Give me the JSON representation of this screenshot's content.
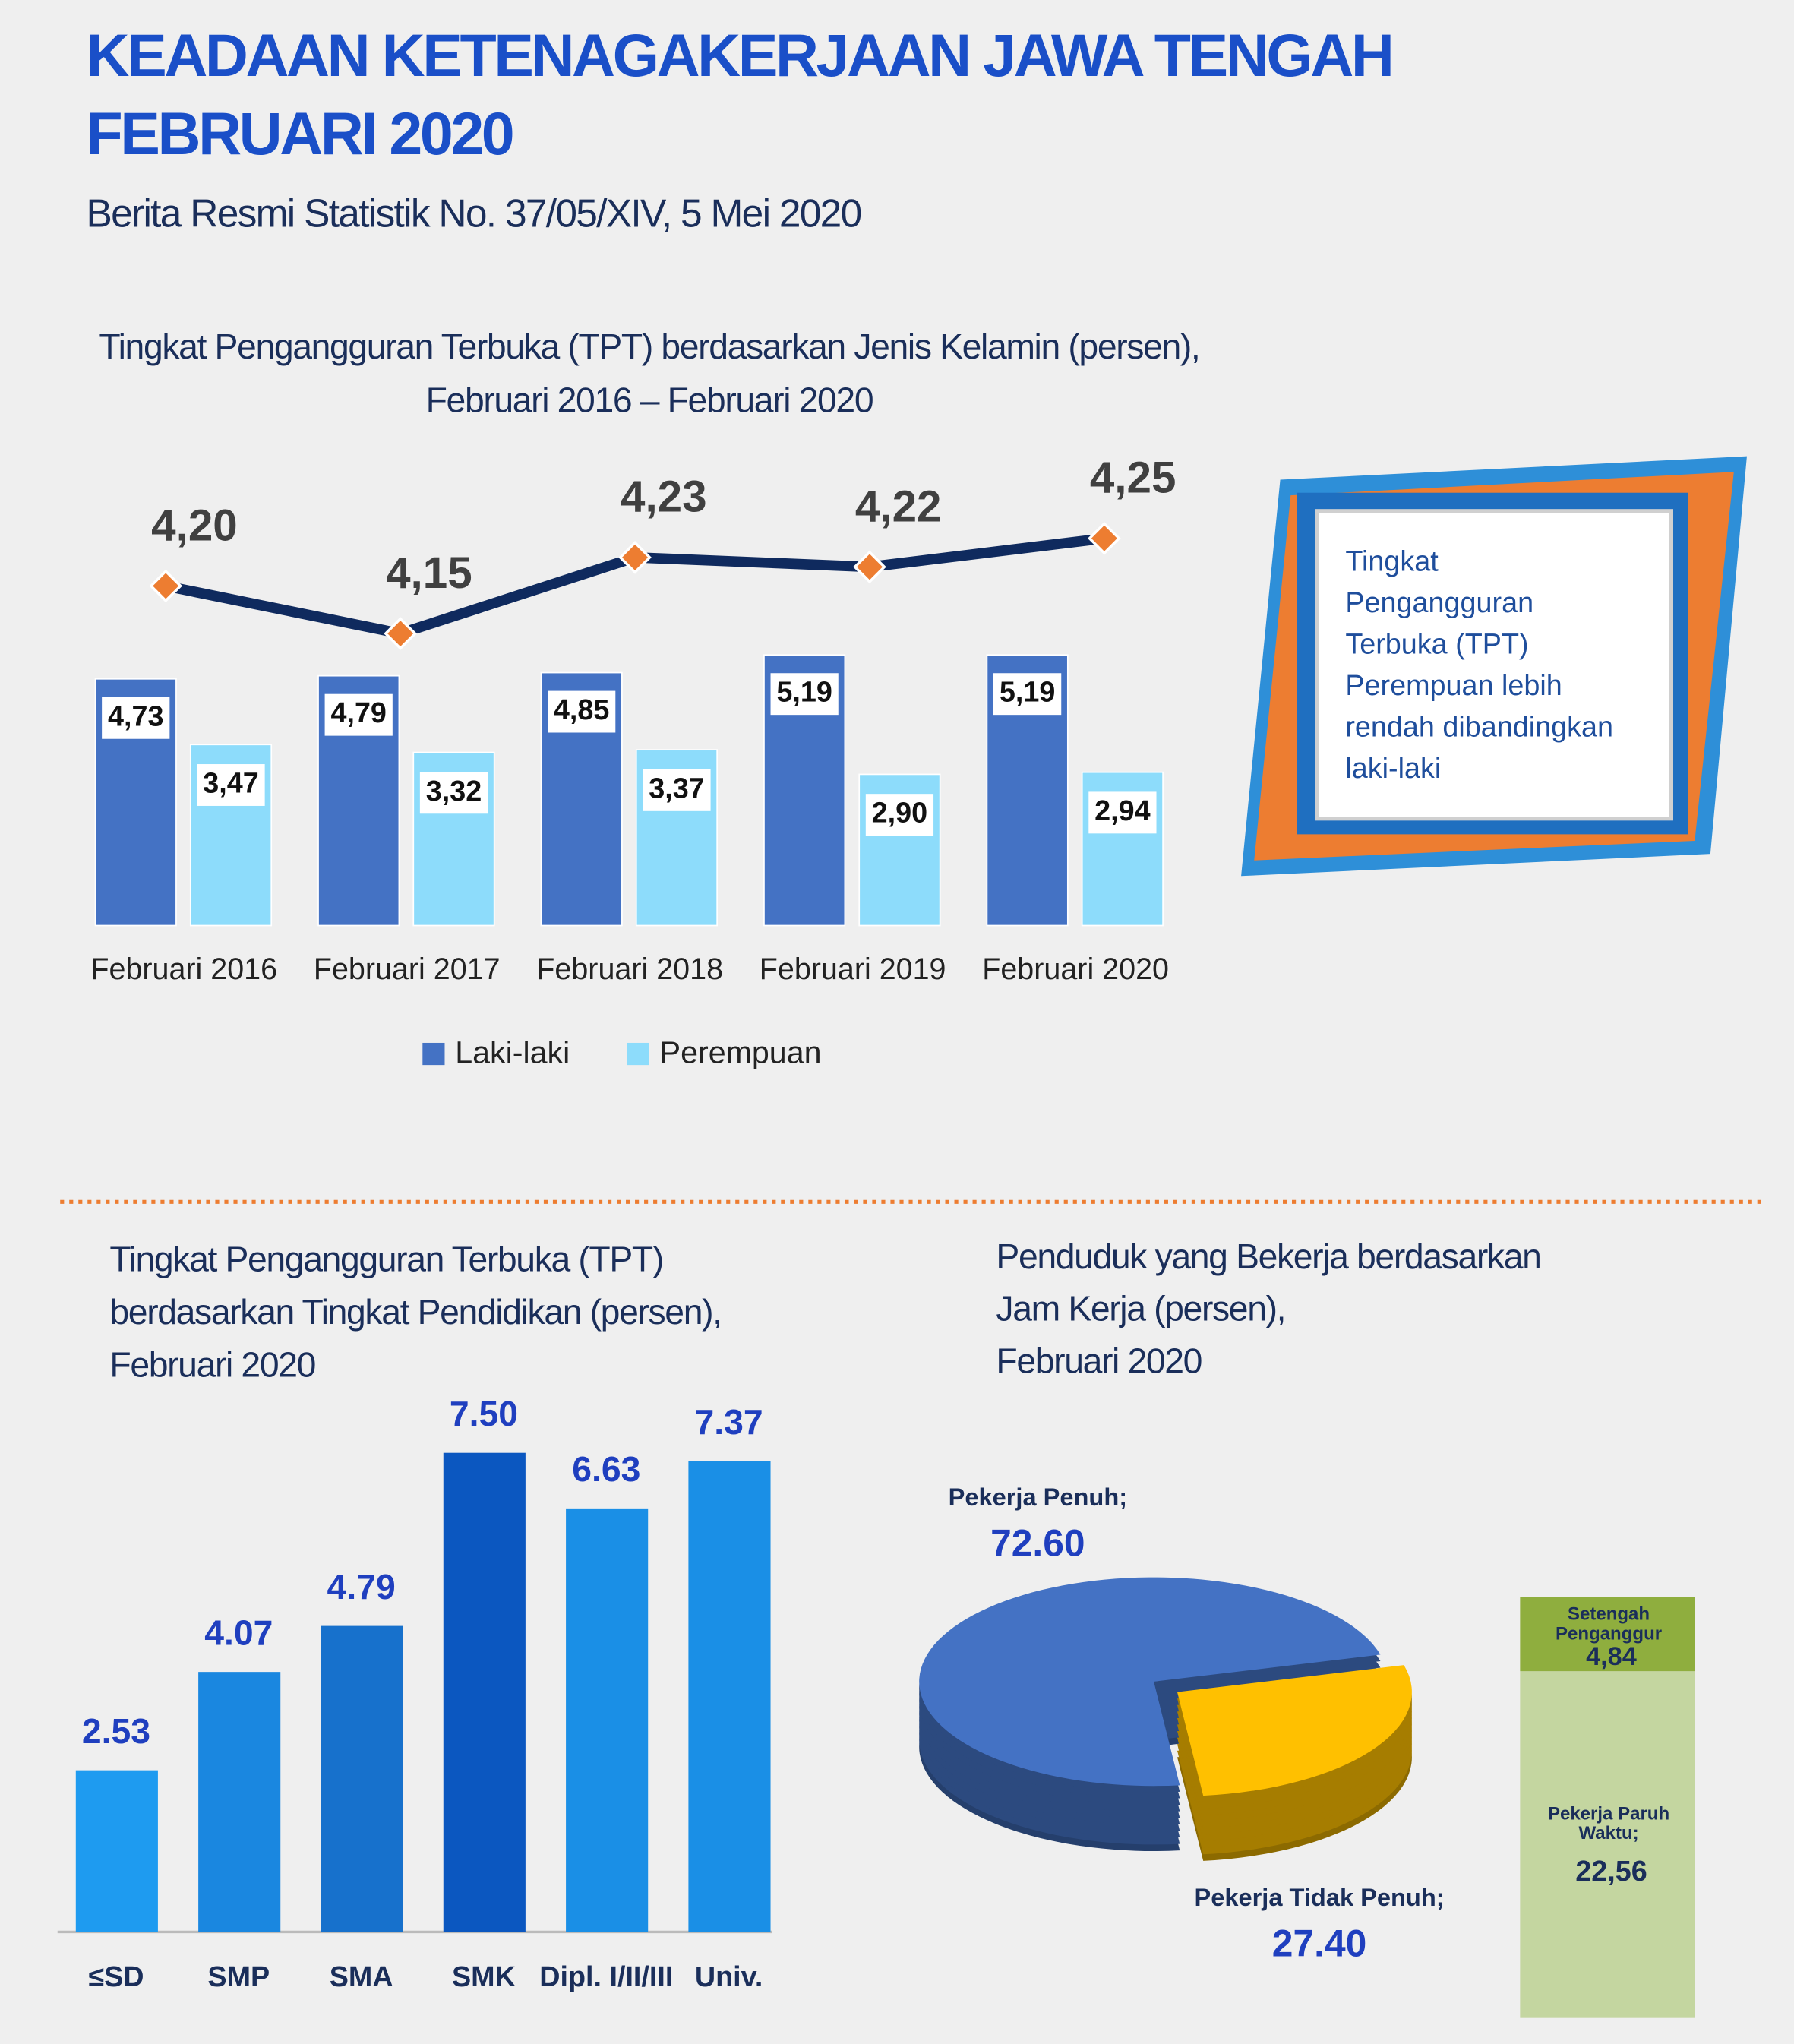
{
  "header": {
    "title": [
      "KEADAAN KETENAGAKERJAAN JAWA TENGAH",
      "FEBRUARI 2020"
    ],
    "subtitle": "Berita Resmi Statistik No. 37/05/XIV, 5 Mei 2020"
  },
  "callout": {
    "lines": [
      "Tingkat",
      "Pengangguran",
      "Terbuka (TPT)",
      "Perempuan lebih",
      "rendah dibandingkan",
      "laki-laki"
    ]
  },
  "chart_data": [
    {
      "type": "bar",
      "title": [
        "Tingkat Pengangguran Terbuka (TPT) berdasarkan Jenis Kelamin (persen),",
        "Februari 2016 – Februari 2020"
      ],
      "categories": [
        "Februari 2016",
        "Februari 2017",
        "Februari 2018",
        "Februari 2019",
        "Februari 2020"
      ],
      "series": [
        {
          "name": "Laki-laki",
          "color": "#4472c4",
          "values": [
            4.73,
            4.79,
            4.85,
            5.19,
            5.19
          ],
          "value_labels": [
            "4,73",
            "4,79",
            "4,85",
            "5,19",
            "5,19"
          ]
        },
        {
          "name": "Perempuan",
          "color": "#8ddcfb",
          "values": [
            3.47,
            3.32,
            3.37,
            2.9,
            2.94
          ],
          "value_labels": [
            "3,47",
            "3,32",
            "3,37",
            "2,90",
            "2,94"
          ]
        },
        {
          "type": "line",
          "color": "#0f2a5e",
          "marker_color": "#ed7d31",
          "values": [
            4.2,
            4.15,
            4.23,
            4.22,
            4.25
          ],
          "value_labels": [
            "4,20",
            "4,15",
            "4,23",
            "4,22",
            "4,25"
          ]
        }
      ]
    },
    {
      "type": "bar",
      "title": [
        "Tingkat Pengangguran Terbuka (TPT)",
        "berdasarkan Tingkat Pendidikan (persen),",
        "Februari 2020"
      ],
      "categories": [
        "≤SD",
        "SMP",
        "SMA",
        "SMK",
        "Dipl. I/II/III",
        "Univ."
      ],
      "values": [
        2.53,
        4.07,
        4.79,
        7.5,
        6.63,
        7.37
      ],
      "value_labels": [
        "2.53",
        "4.07",
        "4.79",
        "7.50",
        "6.63",
        "7.37"
      ],
      "colors": [
        "#1e9bf0",
        "#1a87e0",
        "#1771cc",
        "#0b57c0",
        "#1a8fe6",
        "#1a8fe6"
      ]
    },
    {
      "type": "pie",
      "title": [
        "Penduduk yang Bekerja berdasarkan",
        "Jam Kerja (persen),",
        "Februari 2020"
      ],
      "categories": [
        "Pekerja Penuh;",
        "Pekerja Tidak Penuh;"
      ],
      "values": [
        72.6,
        27.4
      ],
      "value_labels": [
        "72.60",
        "27.40"
      ],
      "colors": [
        "#4472c4",
        "#ffc000"
      ],
      "breakdown": {
        "categories": [
          [
            "Pekerja Paruh",
            "Waktu;"
          ],
          [
            "Setengah",
            "Penganggur"
          ]
        ],
        "values": [
          22.56,
          4.84
        ],
        "value_labels": [
          "22,56",
          "4,84"
        ],
        "colors": [
          "#c4d6a0",
          "#8fae3e"
        ]
      }
    }
  ]
}
